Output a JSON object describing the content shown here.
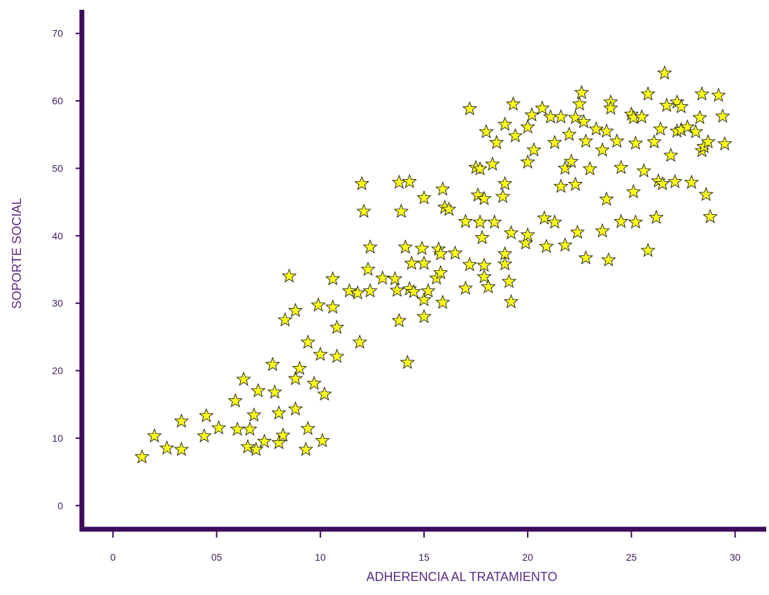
{
  "chart_data": {
    "type": "scatter",
    "xlabel": "ADHERENCIA AL TRATAMIENTO",
    "ylabel": "SOPORTE SOCIAL",
    "xlim": [
      -1.5,
      31.5
    ],
    "ylim": [
      -3.5,
      73.5
    ],
    "x_ticks": [
      0,
      5,
      10,
      15,
      20,
      25,
      30
    ],
    "x_tick_labels": [
      "0",
      "05",
      "10",
      "15",
      "20",
      "25",
      "30"
    ],
    "y_ticks": [
      0,
      10,
      20,
      30,
      40,
      50,
      60,
      70
    ],
    "y_tick_labels": [
      "0",
      "10",
      "20",
      "30",
      "40",
      "50",
      "60",
      "70"
    ],
    "grid": false,
    "legend": "none",
    "colors": {
      "axis": "#3d0a5c",
      "marker_fill": "#ffff1a",
      "marker_stroke": "#1a1a1a",
      "label": "#5b2c83"
    },
    "marker": "star",
    "points": [
      [
        1.4,
        7.2
      ],
      [
        2.0,
        10.3
      ],
      [
        2.6,
        8.5
      ],
      [
        3.3,
        8.3
      ],
      [
        3.3,
        12.5
      ],
      [
        4.4,
        10.3
      ],
      [
        4.5,
        13.3
      ],
      [
        5.1,
        11.5
      ],
      [
        5.9,
        15.5
      ],
      [
        6.0,
        11.3
      ],
      [
        6.3,
        18.7
      ],
      [
        6.5,
        8.7
      ],
      [
        6.6,
        11.3
      ],
      [
        6.9,
        8.3
      ],
      [
        6.8,
        13.4
      ],
      [
        7.0,
        17.0
      ],
      [
        7.3,
        9.5
      ],
      [
        7.7,
        20.9
      ],
      [
        7.8,
        16.8
      ],
      [
        8.0,
        13.7
      ],
      [
        8.0,
        9.3
      ],
      [
        8.2,
        10.4
      ],
      [
        8.3,
        27.5
      ],
      [
        8.5,
        34.0
      ],
      [
        8.8,
        18.8
      ],
      [
        8.8,
        28.9
      ],
      [
        8.8,
        14.3
      ],
      [
        9.0,
        20.3
      ],
      [
        9.3,
        8.3
      ],
      [
        9.4,
        11.4
      ],
      [
        9.4,
        24.2
      ],
      [
        9.7,
        18.1
      ],
      [
        9.9,
        29.7
      ],
      [
        10.0,
        22.4
      ],
      [
        10.1,
        9.6
      ],
      [
        10.2,
        16.5
      ],
      [
        10.6,
        33.6
      ],
      [
        10.6,
        29.4
      ],
      [
        10.8,
        26.4
      ],
      [
        10.8,
        22.1
      ],
      [
        11.4,
        31.8
      ],
      [
        11.8,
        31.5
      ],
      [
        11.9,
        24.2
      ],
      [
        12.0,
        47.7
      ],
      [
        12.1,
        43.6
      ],
      [
        12.3,
        35.0
      ],
      [
        12.4,
        31.8
      ],
      [
        12.4,
        38.3
      ],
      [
        13.0,
        33.7
      ],
      [
        13.6,
        33.6
      ],
      [
        13.7,
        31.9
      ],
      [
        13.8,
        27.4
      ],
      [
        13.8,
        47.9
      ],
      [
        13.9,
        43.6
      ],
      [
        14.1,
        38.3
      ],
      [
        14.2,
        21.2
      ],
      [
        14.3,
        48.0
      ],
      [
        14.3,
        32.1
      ],
      [
        14.4,
        35.9
      ],
      [
        14.5,
        31.7
      ],
      [
        14.9,
        38.1
      ],
      [
        15.0,
        45.6
      ],
      [
        15.0,
        35.9
      ],
      [
        15.0,
        28.0
      ],
      [
        15.0,
        30.5
      ],
      [
        15.2,
        31.8
      ],
      [
        15.6,
        33.7
      ],
      [
        15.7,
        38.0
      ],
      [
        15.8,
        37.3
      ],
      [
        15.8,
        34.5
      ],
      [
        15.9,
        30.1
      ],
      [
        15.9,
        46.9
      ],
      [
        16.0,
        44.2
      ],
      [
        16.2,
        43.9
      ],
      [
        16.5,
        37.4
      ],
      [
        17.0,
        42.1
      ],
      [
        17.0,
        32.2
      ],
      [
        17.2,
        58.8
      ],
      [
        17.2,
        35.7
      ],
      [
        17.5,
        50.1
      ],
      [
        17.6,
        46.0
      ],
      [
        17.7,
        49.9
      ],
      [
        17.7,
        42.0
      ],
      [
        17.8,
        39.7
      ],
      [
        17.9,
        45.5
      ],
      [
        17.9,
        35.6
      ],
      [
        17.9,
        33.9
      ],
      [
        18.0,
        55.4
      ],
      [
        18.1,
        32.4
      ],
      [
        18.3,
        50.6
      ],
      [
        18.4,
        42.0
      ],
      [
        18.5,
        53.8
      ],
      [
        18.8,
        45.8
      ],
      [
        18.9,
        56.5
      ],
      [
        18.9,
        47.7
      ],
      [
        18.9,
        37.3
      ],
      [
        18.9,
        35.8
      ],
      [
        19.1,
        33.2
      ],
      [
        19.2,
        40.4
      ],
      [
        19.2,
        30.2
      ],
      [
        19.3,
        59.5
      ],
      [
        19.4,
        54.8
      ],
      [
        19.9,
        38.9
      ],
      [
        20.0,
        56.1
      ],
      [
        20.0,
        40.1
      ],
      [
        20.0,
        50.9
      ],
      [
        20.2,
        57.9
      ],
      [
        20.3,
        52.7
      ],
      [
        20.7,
        58.9
      ],
      [
        20.8,
        42.6
      ],
      [
        20.9,
        38.4
      ],
      [
        21.1,
        57.6
      ],
      [
        21.3,
        53.8
      ],
      [
        21.3,
        42.0
      ],
      [
        21.6,
        57.6
      ],
      [
        21.6,
        47.3
      ],
      [
        21.8,
        38.6
      ],
      [
        21.8,
        50.0
      ],
      [
        22.0,
        55.0
      ],
      [
        22.1,
        51.0
      ],
      [
        22.3,
        57.5
      ],
      [
        22.3,
        47.6
      ],
      [
        22.4,
        40.5
      ],
      [
        22.5,
        59.5
      ],
      [
        22.6,
        61.2
      ],
      [
        22.7,
        56.9
      ],
      [
        22.8,
        54.0
      ],
      [
        22.8,
        36.7
      ],
      [
        23.0,
        49.9
      ],
      [
        23.3,
        55.8
      ],
      [
        23.6,
        52.7
      ],
      [
        23.6,
        40.7
      ],
      [
        23.8,
        55.5
      ],
      [
        23.8,
        45.4
      ],
      [
        23.9,
        36.4
      ],
      [
        24.0,
        59.8
      ],
      [
        24.0,
        58.9
      ],
      [
        24.3,
        54.0
      ],
      [
        24.5,
        50.1
      ],
      [
        24.5,
        42.1
      ],
      [
        25.0,
        58.0
      ],
      [
        25.1,
        57.5
      ],
      [
        25.1,
        46.5
      ],
      [
        25.2,
        53.7
      ],
      [
        25.2,
        42.0
      ],
      [
        25.5,
        57.6
      ],
      [
        25.6,
        49.6
      ],
      [
        25.8,
        61.0
      ],
      [
        25.8,
        37.8
      ],
      [
        26.1,
        53.9
      ],
      [
        26.2,
        42.7
      ],
      [
        26.3,
        48.1
      ],
      [
        26.4,
        55.8
      ],
      [
        26.5,
        47.7
      ],
      [
        26.6,
        64.1
      ],
      [
        26.7,
        59.3
      ],
      [
        26.9,
        51.9
      ],
      [
        27.1,
        48.0
      ],
      [
        27.2,
        59.8
      ],
      [
        27.2,
        55.5
      ],
      [
        27.4,
        59.1
      ],
      [
        27.4,
        55.7
      ],
      [
        27.7,
        56.1
      ],
      [
        27.9,
        47.9
      ],
      [
        28.1,
        55.4
      ],
      [
        28.3,
        57.5
      ],
      [
        28.4,
        61.0
      ],
      [
        28.4,
        52.6
      ],
      [
        28.5,
        53.2
      ],
      [
        28.6,
        46.1
      ],
      [
        28.7,
        53.9
      ],
      [
        28.8,
        42.8
      ],
      [
        29.2,
        60.8
      ],
      [
        29.4,
        57.7
      ],
      [
        29.5,
        53.6
      ]
    ]
  }
}
